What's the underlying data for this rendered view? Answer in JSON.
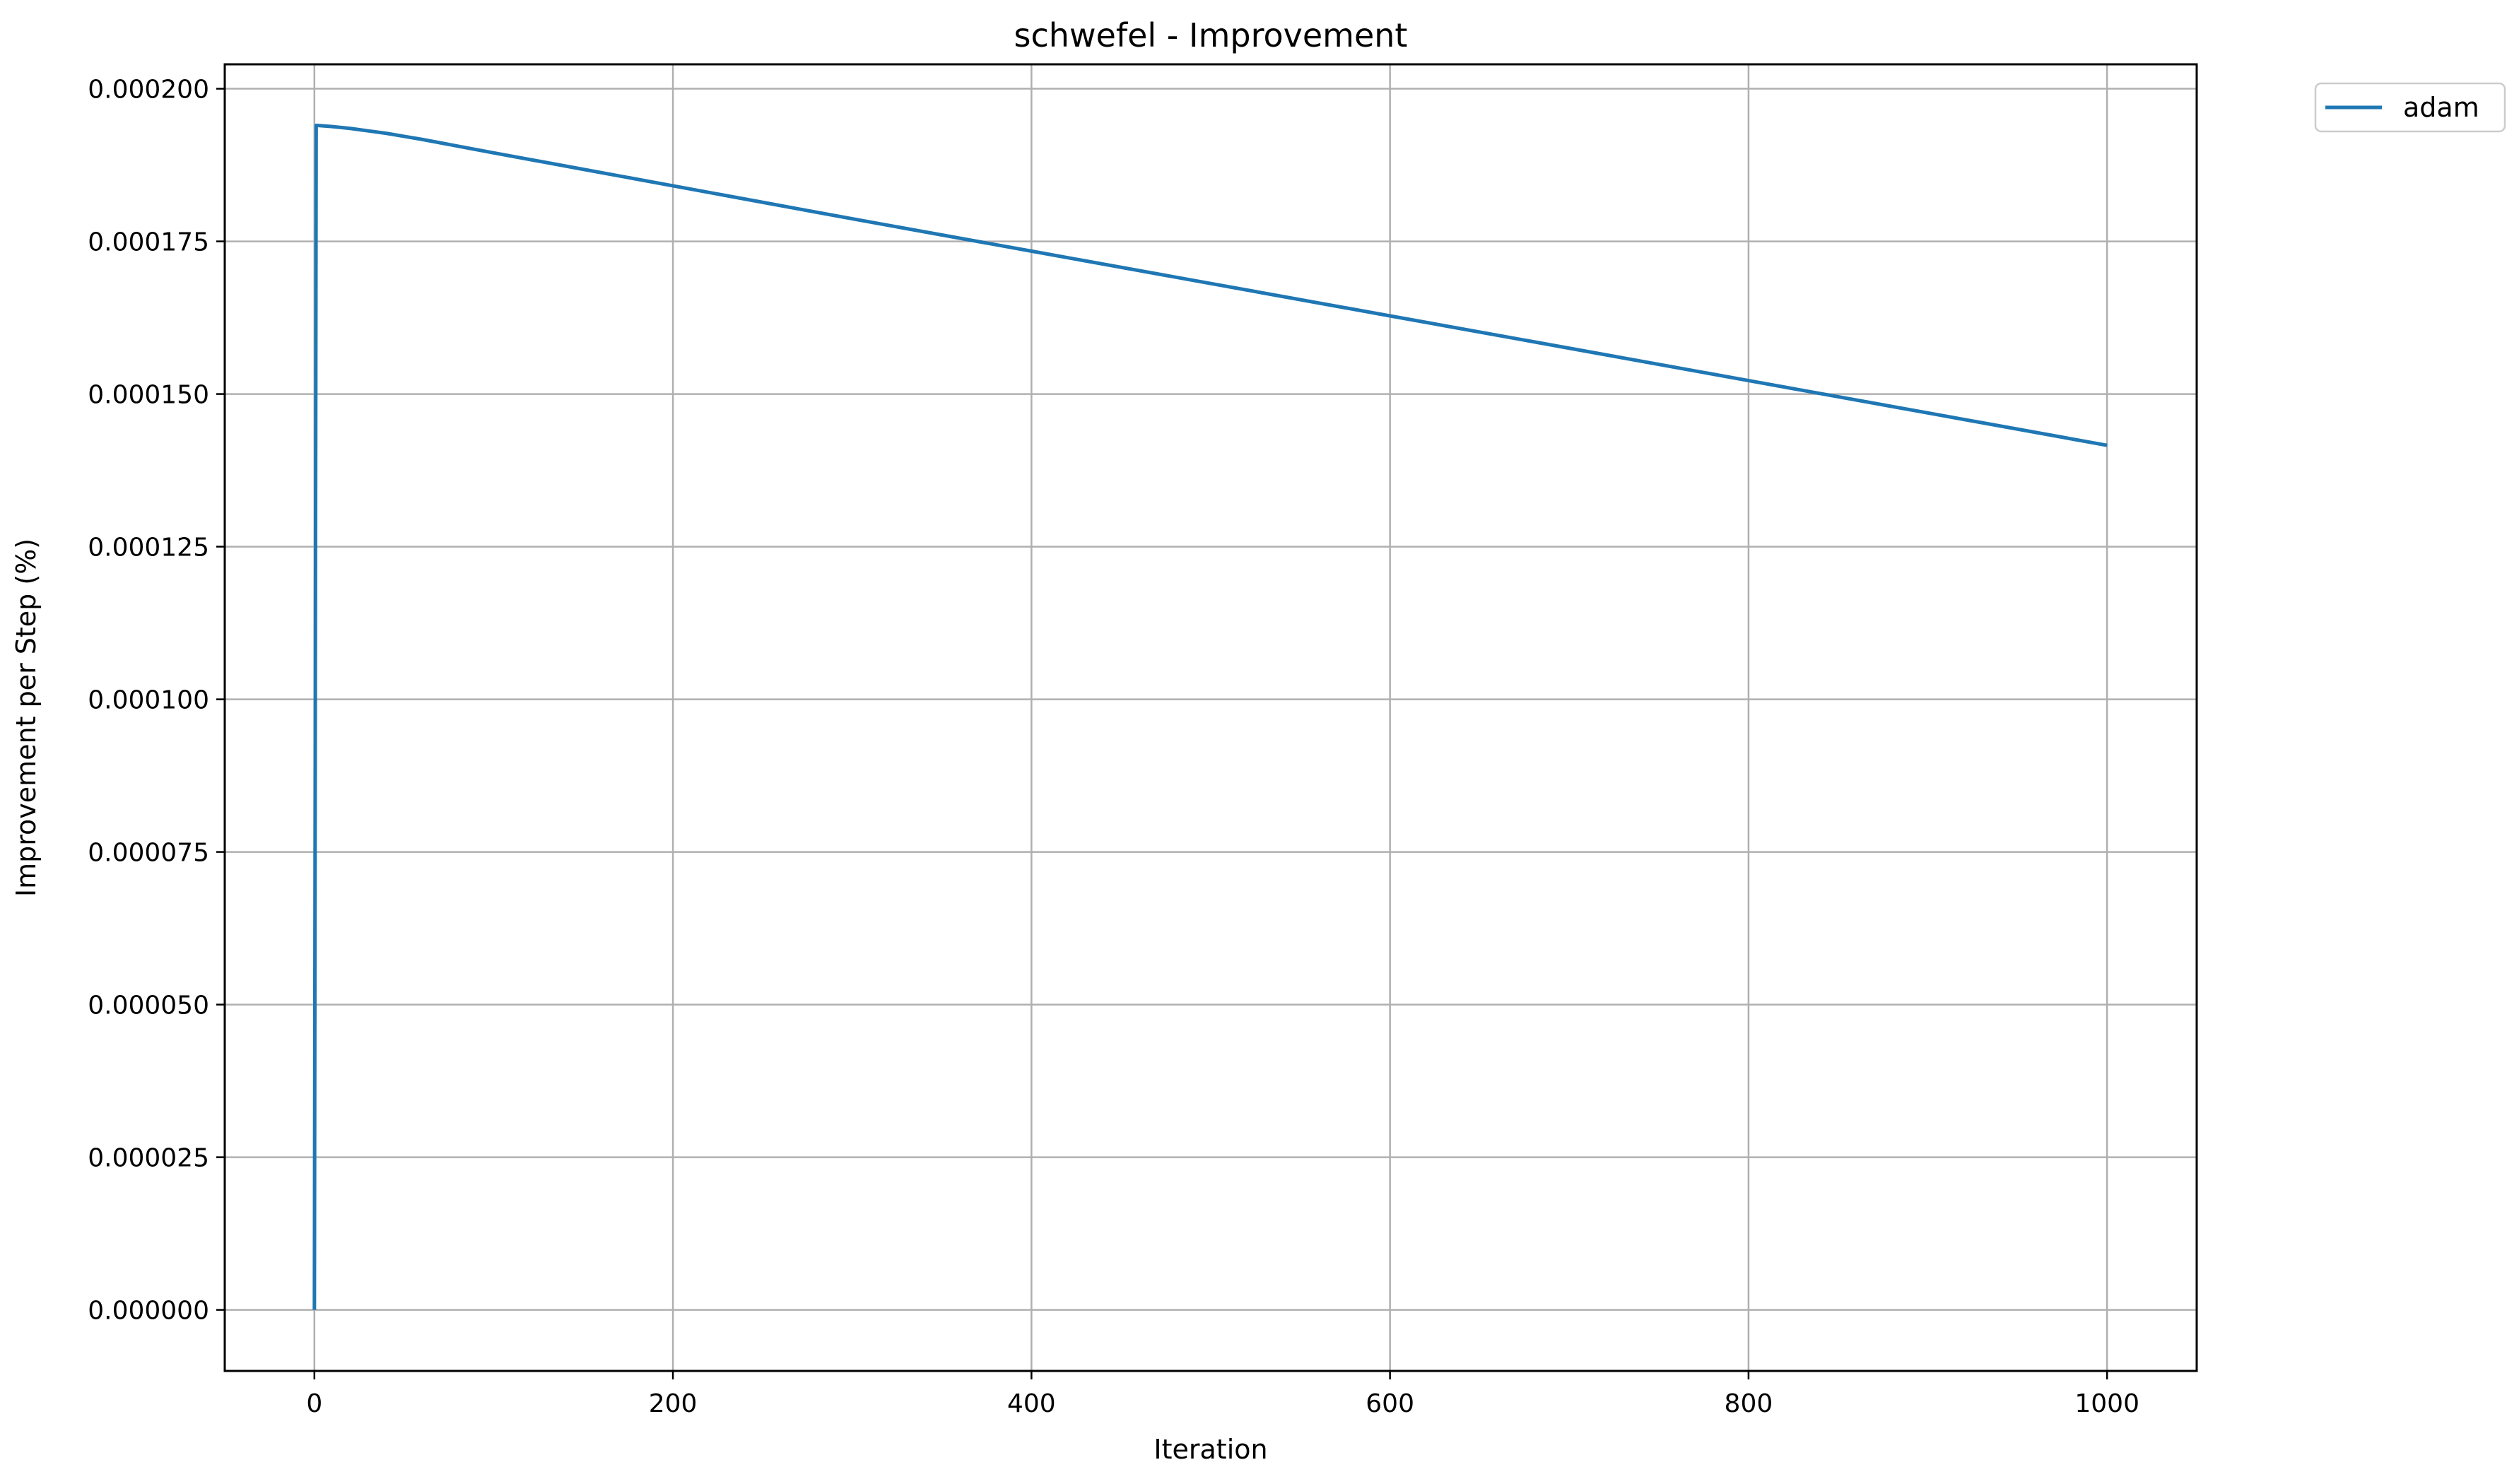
{
  "chart_data": {
    "type": "line",
    "title": "schwefel - Improvement",
    "xlabel": "Iteration",
    "ylabel": "Improvement per Step (%)",
    "xlim": [
      -50,
      1050
    ],
    "ylim": [
      -1e-05,
      0.000204
    ],
    "xticks": [
      0,
      200,
      400,
      600,
      800,
      1000
    ],
    "xtick_labels": [
      "0",
      "200",
      "400",
      "600",
      "800",
      "1000"
    ],
    "yticks": [
      0,
      2.5e-05,
      5e-05,
      7.5e-05,
      0.0001,
      0.000125,
      0.00015,
      0.000175,
      0.0002
    ],
    "ytick_labels": [
      "0.000000",
      "0.000025",
      "0.000050",
      "0.000075",
      "0.000100",
      "0.000125",
      "0.000150",
      "0.000175",
      "0.000200"
    ],
    "grid": true,
    "legend": {
      "placement": "outside-top-right"
    },
    "series": [
      {
        "name": "adam",
        "color": "#1f77b4",
        "x": [
          0,
          1,
          10,
          20,
          30,
          40,
          50,
          60,
          80,
          100,
          150,
          200,
          250,
          300,
          400,
          500,
          600,
          700,
          800,
          900,
          1000
        ],
        "y": [
          0,
          0.000194,
          0.0001938,
          0.0001935,
          0.0001931,
          0.0001927,
          0.0001922,
          0.0001917,
          0.0001906,
          0.0001895,
          0.0001868,
          0.0001841,
          0.0001814,
          0.0001787,
          0.0001734,
          0.0001681,
          0.0001628,
          0.0001575,
          0.0001522,
          0.0001469,
          0.0001416
        ]
      }
    ]
  }
}
